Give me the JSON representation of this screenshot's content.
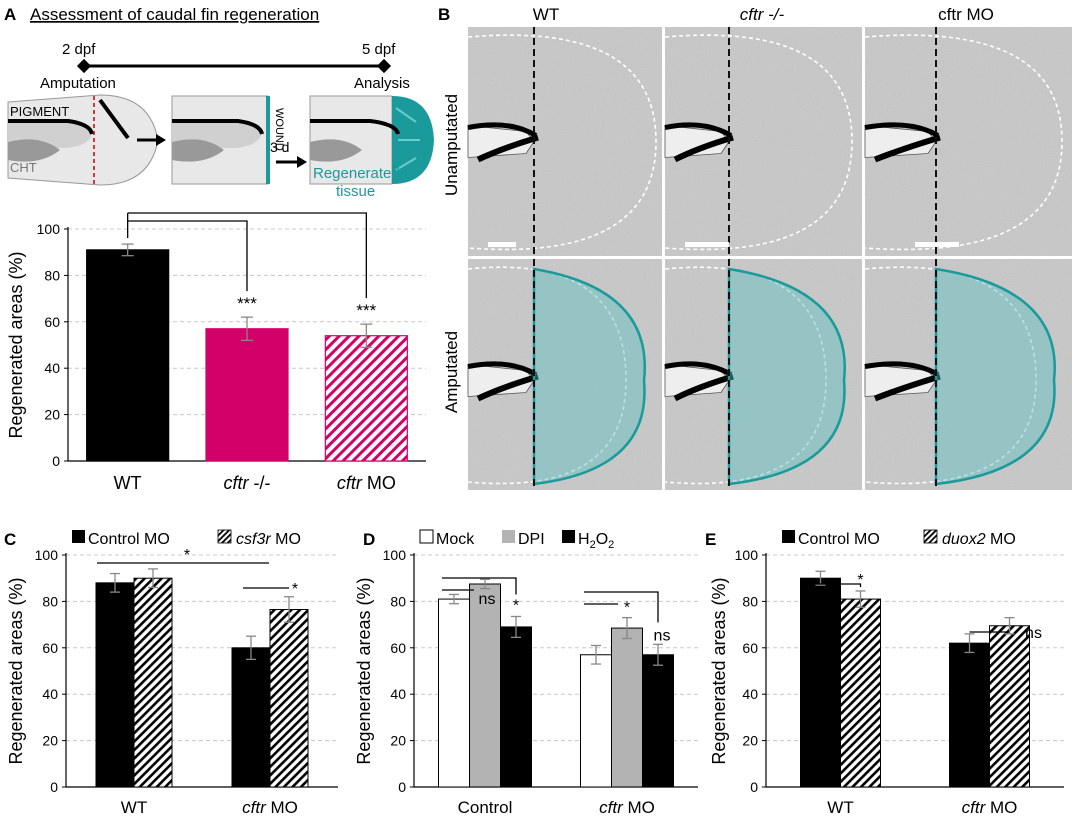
{
  "panelA": {
    "letter": "A",
    "title": "Assessment of caudal fin regeneration",
    "timeline": {
      "start": "2 dpf",
      "end": "5 dpf",
      "start_event": "Amputation",
      "end_event": "Analysis"
    },
    "schematic": {
      "pigment": "PIGMENT",
      "cht": "CHT",
      "wound": "WOUND",
      "arrow_label": "3 d",
      "regen_line1": "Regenerated",
      "regen_line2": "tissue"
    },
    "colors": {
      "wt": "#000000",
      "cftr": "#d4006a",
      "teal": "#1a9a9a"
    }
  },
  "panelB": {
    "letter": "B",
    "columns": [
      "WT",
      "cftr -/-",
      "cftr MO"
    ],
    "rows": [
      "Unamputated",
      "Amputated"
    ]
  },
  "charts": {
    "A": {
      "chart_data": {
        "type": "bar",
        "categories": [
          "WT",
          "cftr -/-",
          "cftr MO"
        ],
        "values": [
          91,
          57,
          54
        ],
        "errors": [
          2.5,
          5,
          5
        ],
        "bar_styles": [
          "solid-black",
          "solid-magenta",
          "hatched-magenta"
        ],
        "ylabel": "Regenerated areas (%)",
        "ylim": [
          0,
          100
        ],
        "yticks": [
          "0",
          "20",
          "40",
          "60",
          "80",
          "100"
        ],
        "significance": [
          "***",
          "***"
        ]
      }
    },
    "C": {
      "letter": "C",
      "chart_data": {
        "type": "bar",
        "categories": [
          "WT",
          "cftr MO"
        ],
        "series": [
          {
            "name": "Control MO",
            "values": [
              88,
              60
            ],
            "errors": [
              4,
              5
            ],
            "style": "solid-black"
          },
          {
            "name": "csf3r MO",
            "values": [
              90,
              76.5
            ],
            "errors": [
              4,
              5.5
            ],
            "style": "hatched"
          }
        ],
        "ylabel": "Regenerated areas (%)",
        "ylim": [
          0,
          100
        ],
        "yticks": [
          "0",
          "20",
          "40",
          "60",
          "80",
          "100"
        ],
        "significance": [
          "*",
          "*"
        ]
      }
    },
    "D": {
      "letter": "D",
      "chart_data": {
        "type": "bar",
        "categories": [
          "Control",
          "cftr MO"
        ],
        "series": [
          {
            "name": "Mock",
            "values": [
              81,
              57
            ],
            "errors": [
              2,
              4
            ],
            "style": "white"
          },
          {
            "name": "DPI",
            "values": [
              87.5,
              68.5
            ],
            "errors": [
              2,
              4.5
            ],
            "style": "grey"
          },
          {
            "name": "H2O2",
            "values": [
              69,
              57
            ],
            "errors": [
              4.5,
              4.5
            ],
            "style": "black"
          }
        ],
        "ylabel": "Regenerated areas (%)",
        "ylim": [
          0,
          100
        ],
        "yticks": [
          "0",
          "20",
          "40",
          "60",
          "80",
          "100"
        ],
        "significance": [
          "ns",
          "*",
          "*",
          "ns"
        ]
      }
    },
    "E": {
      "letter": "E",
      "chart_data": {
        "type": "bar",
        "categories": [
          "WT",
          "cftr MO"
        ],
        "series": [
          {
            "name": "Control MO",
            "values": [
              90,
              62
            ],
            "errors": [
              3,
              4
            ],
            "style": "solid-black"
          },
          {
            "name": "duox2 MO",
            "values": [
              81,
              69.5
            ],
            "errors": [
              3.5,
              3.5
            ],
            "style": "hatched"
          }
        ],
        "ylabel": "Regenerated areas (%)",
        "ylim": [
          0,
          100
        ],
        "yticks": [
          "0",
          "20",
          "40",
          "60",
          "80",
          "100"
        ],
        "significance": [
          "*",
          "ns"
        ]
      }
    }
  }
}
